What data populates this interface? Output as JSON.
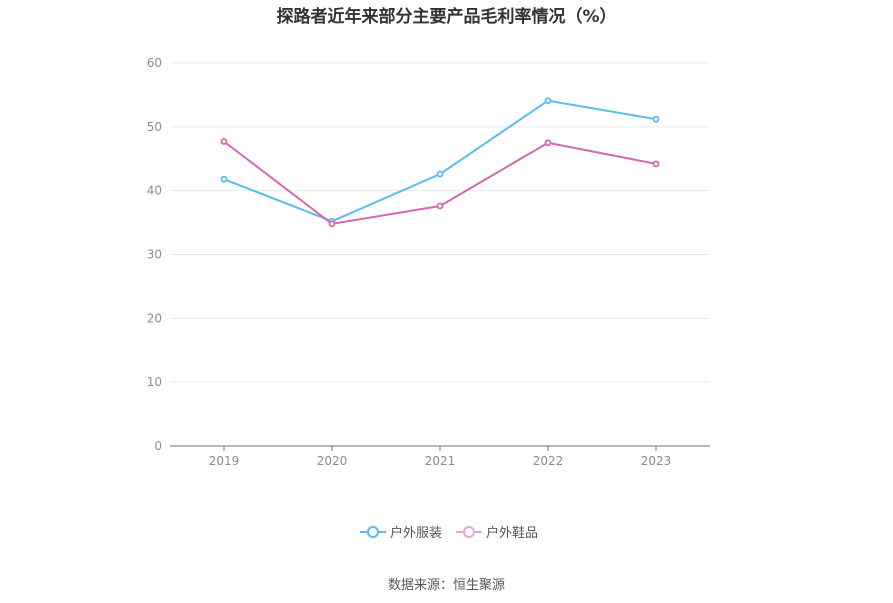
{
  "chart_data": {
    "type": "line",
    "title": "探路者近年来部分主要产品毛利率情况（%）",
    "categories": [
      "2019",
      "2020",
      "2021",
      "2022",
      "2023"
    ],
    "series": [
      {
        "name": "户外服装",
        "values": [
          41.8,
          35.2,
          42.6,
          54.1,
          51.2
        ],
        "color": "#5bbcec"
      },
      {
        "name": "户外鞋品",
        "values": [
          47.7,
          34.8,
          37.6,
          47.5,
          44.2
        ],
        "color": "#d467b0"
      }
    ],
    "ylim": [
      0,
      60
    ],
    "yticks": [
      0,
      10,
      20,
      30,
      40,
      50,
      60
    ],
    "xlabel": "",
    "ylabel": "",
    "grid": true,
    "legend_position": "bottom-center"
  },
  "source_text": "数据来源：恒生聚源"
}
